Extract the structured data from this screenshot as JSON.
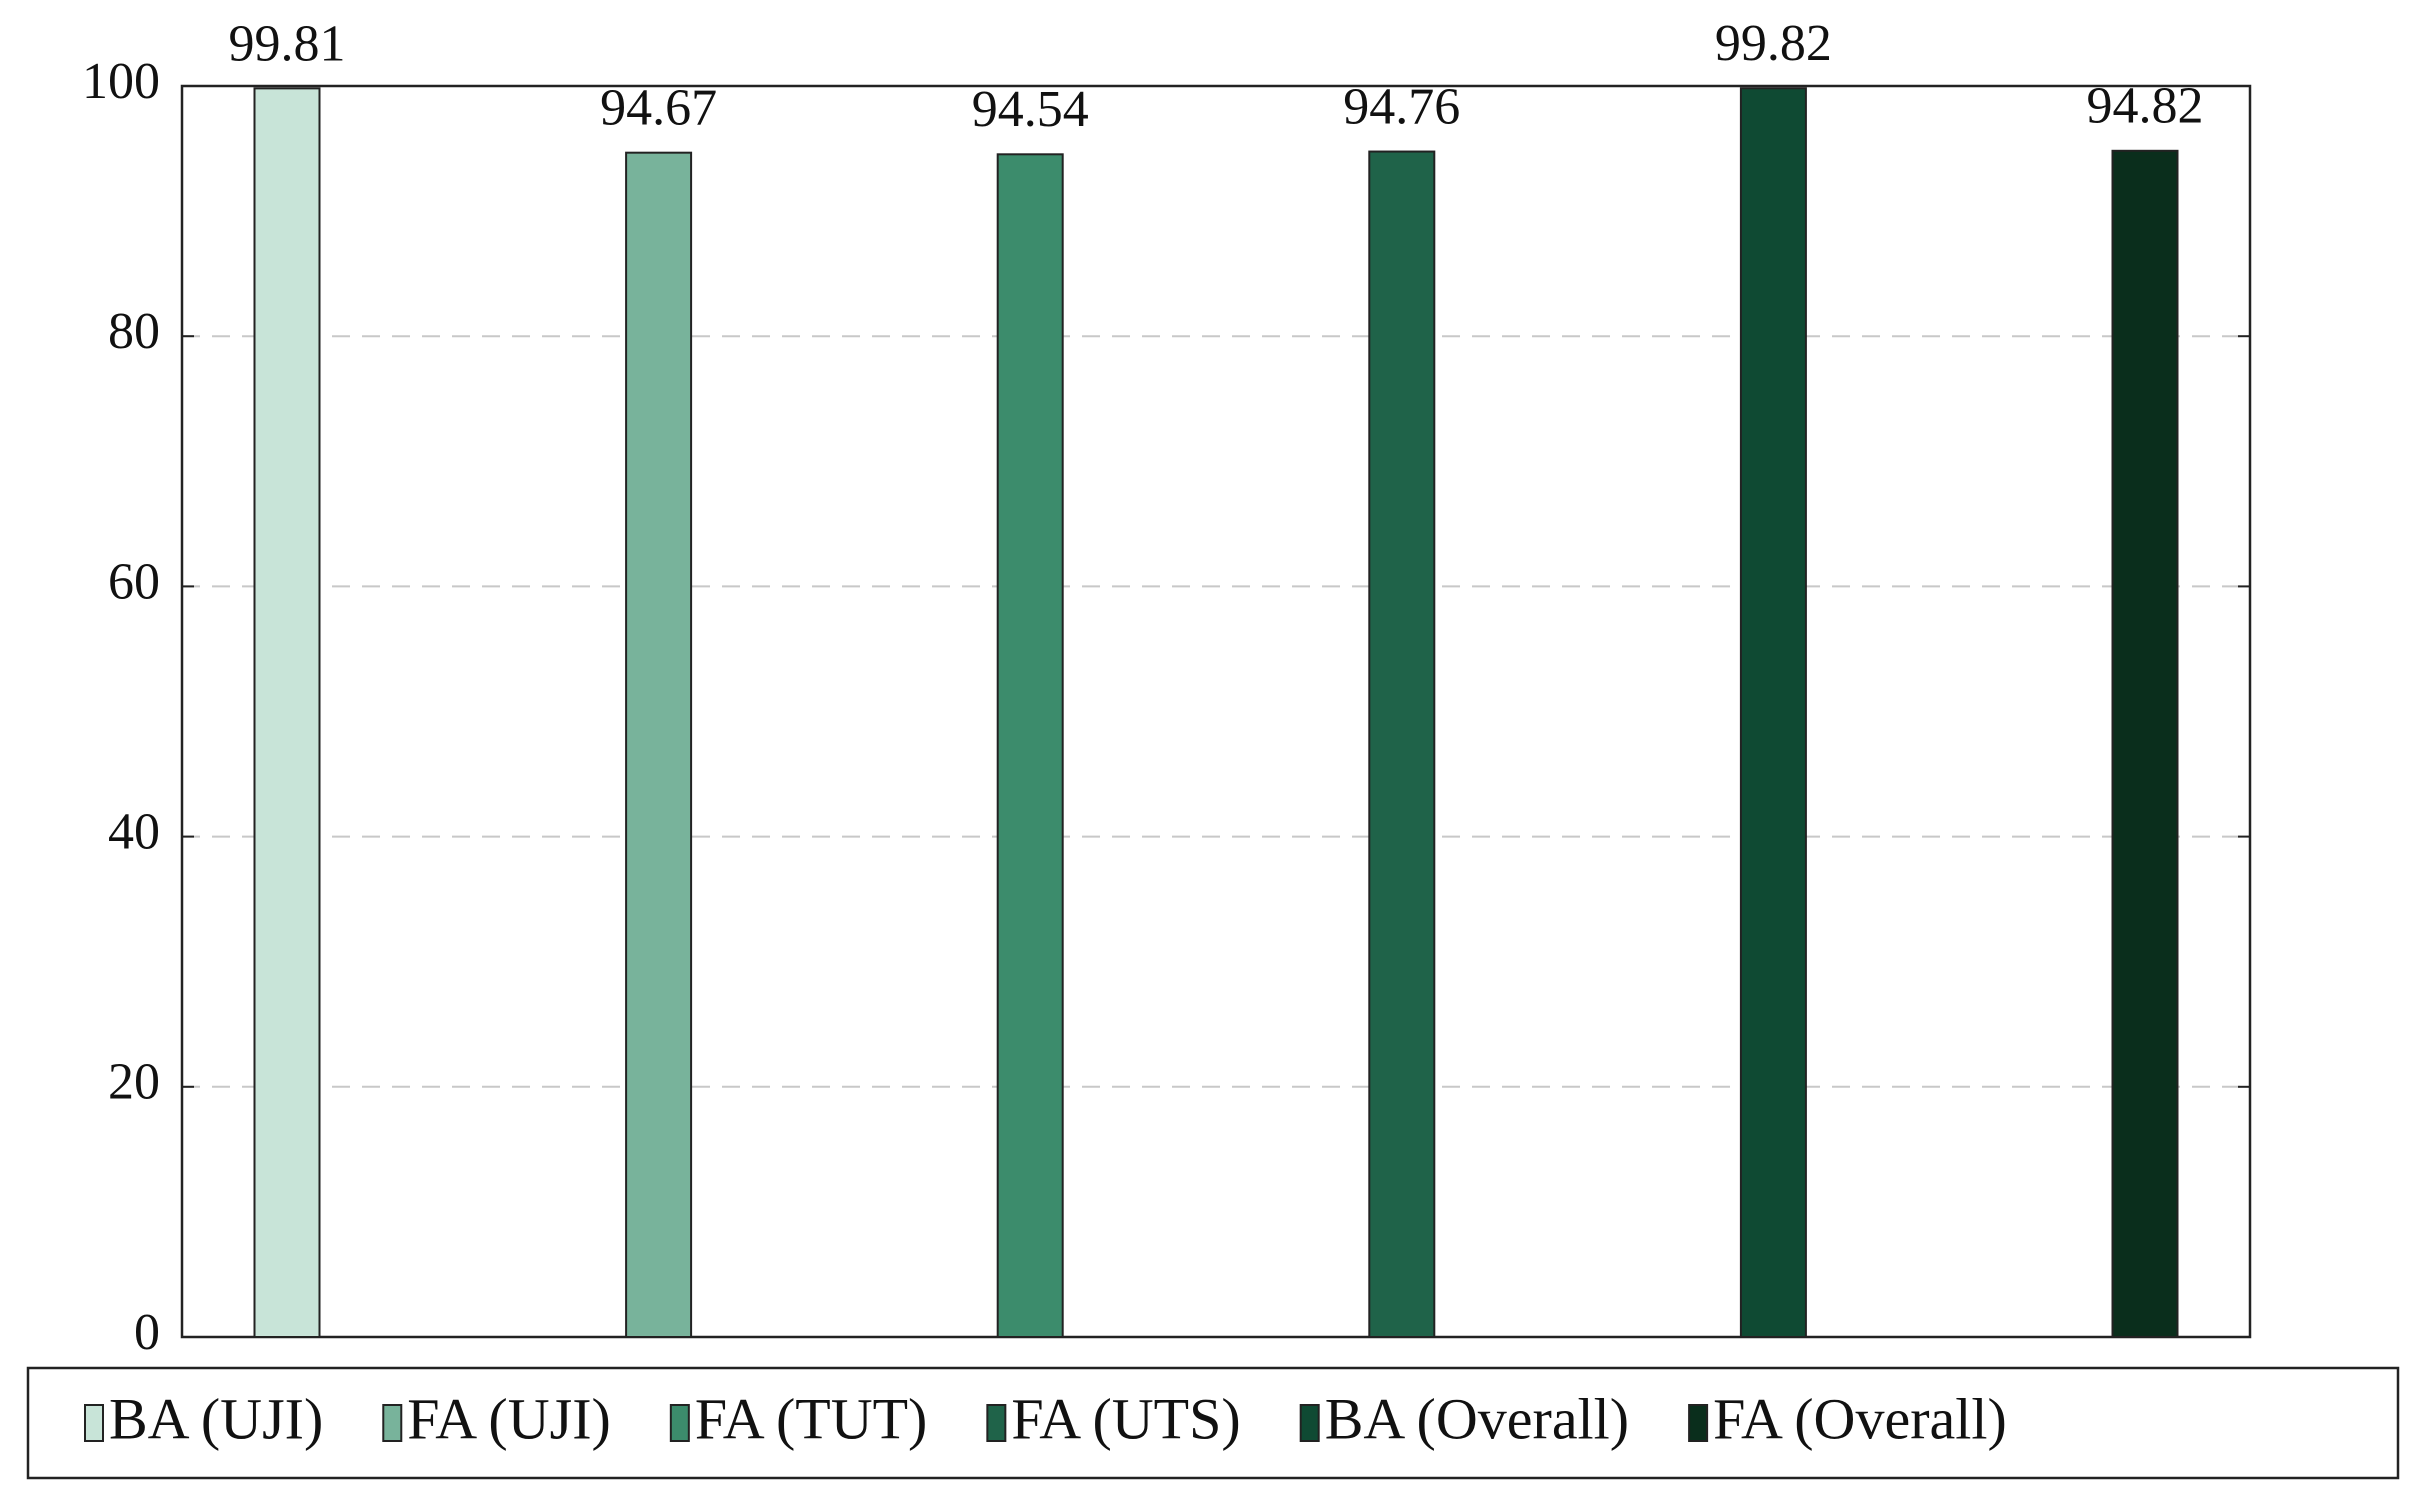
{
  "chart_data": {
    "type": "bar",
    "series": [
      {
        "name": "BA (UJI)",
        "color": "#c8e4d8",
        "values": [
          99.81
        ]
      },
      {
        "name": "FA (UJI)",
        "color": "#78b39b",
        "values": [
          94.67
        ]
      },
      {
        "name": "FA (TUT)",
        "color": "#3c8c6c",
        "values": [
          94.54
        ]
      },
      {
        "name": "FA (UTS)",
        "color": "#1f6349",
        "values": [
          94.76
        ]
      },
      {
        "name": "BA (Overall)",
        "color": "#0f4a33",
        "values": [
          99.82
        ]
      },
      {
        "name": "FA (Overall)",
        "color": "#0a2e1c",
        "values": [
          94.82
        ]
      }
    ],
    "ylim": [
      0,
      100
    ],
    "yticks": [
      0,
      20,
      40,
      60,
      80,
      100
    ],
    "grid": true,
    "legend": "bottom"
  }
}
